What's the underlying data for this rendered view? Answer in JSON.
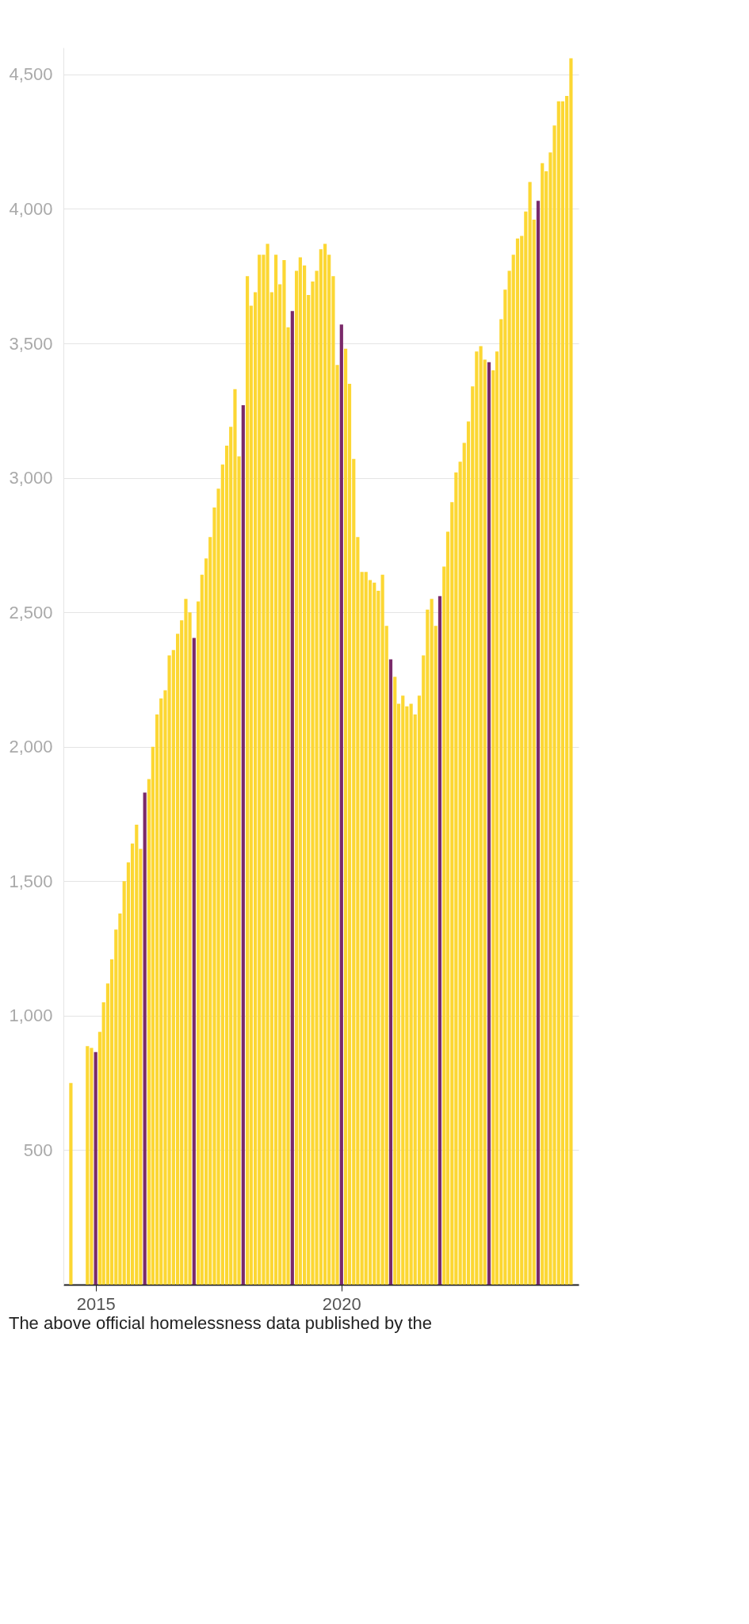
{
  "chart_data": {
    "type": "bar",
    "x": [
      "2014-07",
      "2014-11",
      "2014-12",
      "2015-01",
      "2015-02",
      "2015-03",
      "2015-04",
      "2015-05",
      "2015-06",
      "2015-07",
      "2015-08",
      "2015-09",
      "2015-10",
      "2015-11",
      "2015-12",
      "2016-01",
      "2016-02",
      "2016-03",
      "2016-04",
      "2016-05",
      "2016-06",
      "2016-07",
      "2016-08",
      "2016-09",
      "2016-10",
      "2016-11",
      "2016-12",
      "2017-01",
      "2017-02",
      "2017-03",
      "2017-04",
      "2017-05",
      "2017-06",
      "2017-07",
      "2017-08",
      "2017-09",
      "2017-10",
      "2017-11",
      "2017-12",
      "2018-01",
      "2018-02",
      "2018-03",
      "2018-04",
      "2018-05",
      "2018-06",
      "2018-07",
      "2018-08",
      "2018-09",
      "2018-10",
      "2018-11",
      "2018-12",
      "2019-01",
      "2019-02",
      "2019-03",
      "2019-04",
      "2019-05",
      "2019-06",
      "2019-07",
      "2019-08",
      "2019-09",
      "2019-10",
      "2019-11",
      "2019-12",
      "2020-01",
      "2020-02",
      "2020-03",
      "2020-04",
      "2020-05",
      "2020-06",
      "2020-07",
      "2020-08",
      "2020-09",
      "2020-10",
      "2020-11",
      "2020-12",
      "2021-01",
      "2021-02",
      "2021-03",
      "2021-04",
      "2021-05",
      "2021-06",
      "2021-07",
      "2021-08",
      "2021-09",
      "2021-10",
      "2021-11",
      "2021-12",
      "2022-01",
      "2022-02",
      "2022-03",
      "2022-04",
      "2022-05",
      "2022-06",
      "2022-07",
      "2022-08",
      "2022-09",
      "2022-10",
      "2022-11",
      "2022-12",
      "2023-01",
      "2023-02",
      "2023-03",
      "2023-04",
      "2023-05",
      "2023-06",
      "2023-07",
      "2023-08",
      "2023-09",
      "2023-10",
      "2023-11",
      "2023-12",
      "2024-01",
      "2024-02",
      "2024-03",
      "2024-04",
      "2024-05",
      "2024-06",
      "2024-07",
      "2024-08",
      "2024-09"
    ],
    "values": [
      750,
      887,
      880,
      865,
      940,
      1050,
      1120,
      1210,
      1320,
      1380,
      1500,
      1570,
      1640,
      1710,
      1620,
      1830,
      1880,
      2000,
      2120,
      2180,
      2210,
      2340,
      2360,
      2420,
      2470,
      2550,
      2500,
      2405,
      2540,
      2640,
      2700,
      2780,
      2890,
      2960,
      3050,
      3120,
      3190,
      3330,
      3080,
      3270,
      3750,
      3640,
      3690,
      3830,
      3830,
      3870,
      3690,
      3830,
      3720,
      3810,
      3560,
      3620,
      3770,
      3820,
      3790,
      3680,
      3730,
      3770,
      3850,
      3870,
      3830,
      3750,
      3420,
      3570,
      3480,
      3350,
      3070,
      2780,
      2650,
      2650,
      2620,
      2610,
      2580,
      2640,
      2450,
      2325,
      2260,
      2160,
      2190,
      2150,
      2160,
      2120,
      2190,
      2340,
      2510,
      2550,
      2450,
      2560,
      2670,
      2800,
      2910,
      3020,
      3060,
      3130,
      3210,
      3340,
      3470,
      3490,
      3440,
      3430,
      3400,
      3470,
      3590,
      3700,
      3770,
      3830,
      3890,
      3900,
      3990,
      4100,
      3960,
      4030,
      4170,
      4140,
      4210,
      4310,
      4400,
      4400,
      4420,
      4560
    ],
    "colors": [
      "#fcd733",
      "#fcd733",
      "#fcd733",
      "#7a2a6a",
      "#fcd733",
      "#fcd733",
      "#fcd733",
      "#fcd733",
      "#fcd733",
      "#fcd733",
      "#fcd733",
      "#fcd733",
      "#fcd733",
      "#fcd733",
      "#fcd733",
      "#7a2a6a",
      "#fcd733",
      "#fcd733",
      "#fcd733",
      "#fcd733",
      "#fcd733",
      "#fcd733",
      "#fcd733",
      "#fcd733",
      "#fcd733",
      "#fcd733",
      "#fcd733",
      "#7a2a6a",
      "#fcd733",
      "#fcd733",
      "#fcd733",
      "#fcd733",
      "#fcd733",
      "#fcd733",
      "#fcd733",
      "#fcd733",
      "#fcd733",
      "#fcd733",
      "#fcd733",
      "#7a2a6a",
      "#fcd733",
      "#fcd733",
      "#fcd733",
      "#fcd733",
      "#fcd733",
      "#fcd733",
      "#fcd733",
      "#fcd733",
      "#fcd733",
      "#fcd733",
      "#fcd733",
      "#7a2a6a",
      "#fcd733",
      "#fcd733",
      "#fcd733",
      "#fcd733",
      "#fcd733",
      "#fcd733",
      "#fcd733",
      "#fcd733",
      "#fcd733",
      "#fcd733",
      "#fcd733",
      "#7a2a6a",
      "#fcd733",
      "#fcd733",
      "#fcd733",
      "#fcd733",
      "#fcd733",
      "#fcd733",
      "#fcd733",
      "#fcd733",
      "#fcd733",
      "#fcd733",
      "#fcd733",
      "#7a2a6a",
      "#fcd733",
      "#fcd733",
      "#fcd733",
      "#fcd733",
      "#fcd733",
      "#fcd733",
      "#fcd733",
      "#fcd733",
      "#fcd733",
      "#fcd733",
      "#fcd733",
      "#7a2a6a",
      "#fcd733",
      "#fcd733",
      "#fcd733",
      "#fcd733",
      "#fcd733",
      "#fcd733",
      "#fcd733",
      "#fcd733",
      "#fcd733",
      "#fcd733",
      "#fcd733",
      "#7a2a6a",
      "#fcd733",
      "#fcd733",
      "#fcd733",
      "#fcd733",
      "#fcd733",
      "#fcd733",
      "#fcd733",
      "#fcd733",
      "#fcd733",
      "#fcd733",
      "#fcd733",
      "#7a2a6a",
      "#fcd733",
      "#fcd733",
      "#fcd733",
      "#fcd733",
      "#fcd733",
      "#fcd733",
      "#fcd733",
      "#fcd733"
    ],
    "xlim": [
      "2014-06-05",
      "2024-09-28"
    ],
    "xticks": [
      "2015",
      "2020"
    ],
    "ylim": [
      0,
      4600
    ],
    "yticks": [
      {
        "value": 500,
        "label": "500"
      },
      {
        "value": 1000,
        "label": "1,000"
      },
      {
        "value": 1500,
        "label": "1,500"
      },
      {
        "value": 2000,
        "label": "2,000"
      },
      {
        "value": 2500,
        "label": "2,500"
      },
      {
        "value": 3000,
        "label": "3,000"
      },
      {
        "value": 3500,
        "label": "3,500"
      },
      {
        "value": 4000,
        "label": "4,000"
      },
      {
        "value": 4500,
        "label": "4,500"
      }
    ],
    "grid": "y",
    "annotations": [
      "The above official homelessness data published by the"
    ]
  }
}
